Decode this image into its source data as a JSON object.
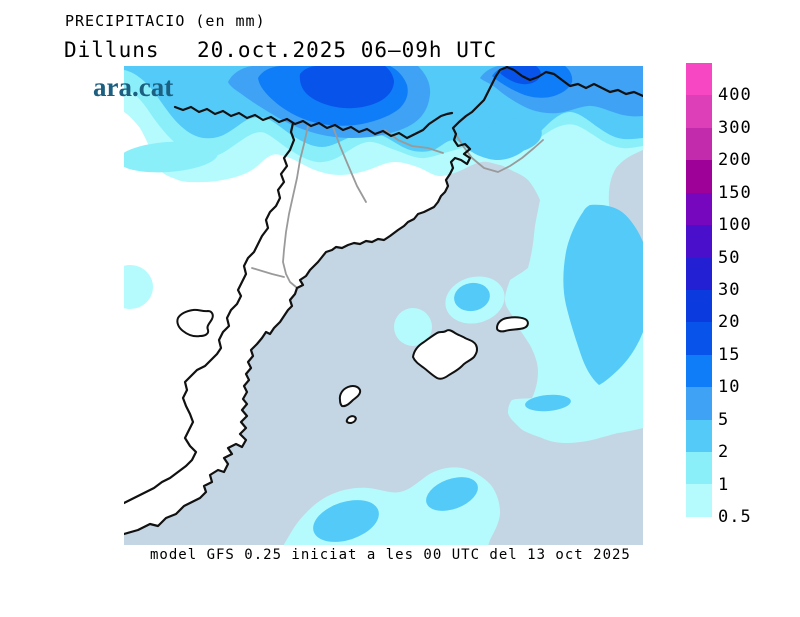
{
  "header": {
    "title": "PRECIPITACIO (en mm)",
    "day": "Dilluns",
    "datetime": "20.oct.2025 06–09h UTC",
    "logo": "ara.cat"
  },
  "footer": {
    "caption": "model GFS 0.25 iniciat a les 00 UTC del 13 oct 2025"
  },
  "legend": {
    "unit": "mm",
    "labels_top_to_bottom": [
      "400",
      "300",
      "200",
      "150",
      "100",
      "50",
      "30",
      "20",
      "15",
      "10",
      "5",
      "2",
      "1",
      "0.5"
    ],
    "colors_top_to_bottom": [
      "p400",
      "p300",
      "p200",
      "p150",
      "p100",
      "p50",
      "p30",
      "p20",
      "p15",
      "p10",
      "p5",
      "p2",
      "p1",
      "p05"
    ]
  },
  "palette": {
    "sea": "#C4D6E4",
    "land": "#FFFFFF",
    "coast": "#111111",
    "admin_border": "#9A9A9A",
    "brand": "#1C5F80",
    "text": "#000000",
    "p05": "#B5FBFD",
    "p1": "#8BEFFA",
    "p2": "#53CAF8",
    "p5": "#3FA2F5",
    "p10": "#0E7DF7",
    "p15": "#0853EA",
    "p20": "#0B3BDF",
    "p30": "#2320D3",
    "p50": "#4A0FCB",
    "p100": "#7707BF",
    "p150": "#9D0197",
    "p200": "#C32BAD",
    "p300": "#DC3FB7",
    "p400": "#F847C3"
  }
}
